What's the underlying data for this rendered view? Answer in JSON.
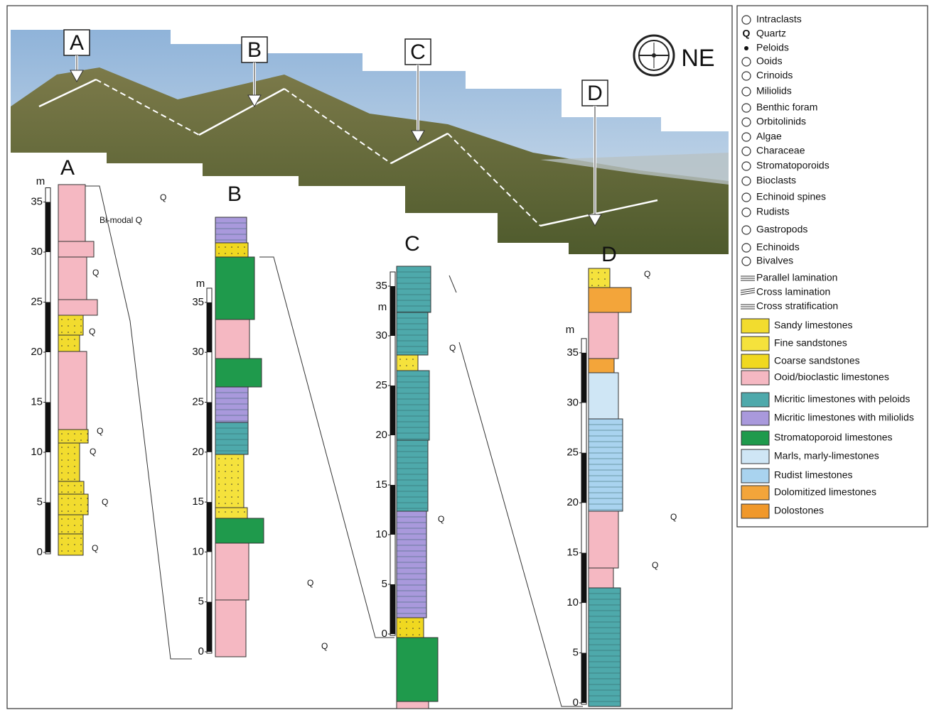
{
  "photo": {
    "labels": [
      "A",
      "B",
      "C",
      "D"
    ],
    "direction": "NE"
  },
  "columns": [
    {
      "label": "A",
      "unit": "m",
      "ticks": [
        0,
        5,
        10,
        15,
        20,
        25,
        30,
        35
      ],
      "notes": [
        "Q",
        "Bi-modal Q",
        "Q",
        "Q",
        "Q",
        "Q",
        "Q",
        "Q"
      ]
    },
    {
      "label": "B",
      "unit": "m",
      "ticks": [
        0,
        5,
        10,
        15,
        20,
        25,
        30,
        35
      ],
      "notes": [
        "Q",
        "Q"
      ]
    },
    {
      "label": "C",
      "unit": "m",
      "ticks": [
        0,
        5,
        10,
        15,
        20,
        25,
        30,
        35
      ],
      "notes": [
        "Q",
        "Q"
      ]
    },
    {
      "label": "D",
      "unit": "m",
      "ticks": [
        0,
        5,
        10,
        15,
        20,
        25,
        30,
        35
      ],
      "notes": [
        "Q",
        "Q",
        "Q"
      ]
    }
  ],
  "legend": {
    "quartz_symbol": "Q",
    "items": [
      "Intraclasts",
      "Quartz",
      "Peloids",
      "Ooids",
      "Crinoids",
      "Miliolids",
      "Benthic foram",
      "Orbitolinids",
      "Algae",
      "Characeae",
      "Stromatoporoids",
      "Bioclasts",
      "Echinoid spines",
      "Rudists",
      "Gastropods",
      "Echinoids",
      "Bivalves",
      "Parallel lamination",
      "Cross lamination",
      "Cross stratification",
      "Sandy limestones",
      "Fine sandstones",
      "Coarse sandstones",
      "Ooid/bioclastic limestones",
      "Micritic limestones with peloids",
      "Micritic limestones with miliolids",
      "Stromatoporoid limestones",
      "Marls, marly-limestones",
      "Rudist limestones",
      "Dolomitized limestones",
      "Dolostones"
    ]
  }
}
